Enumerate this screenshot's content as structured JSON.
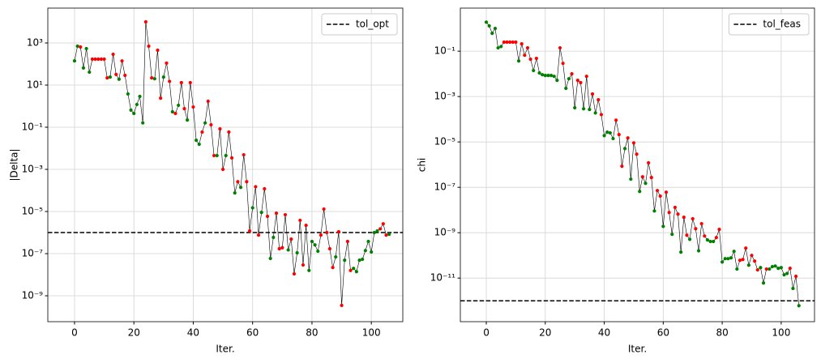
{
  "chart_data": [
    {
      "type": "line",
      "xlabel": "Iter.",
      "ylabel": "|Delta|",
      "log_scale": "y",
      "grid": true,
      "legend": "upper right",
      "xlim": [
        -9,
        110.6
      ],
      "xticks": [
        0,
        20,
        40,
        60,
        80,
        100
      ],
      "ylim": [
        5.9e-11,
        45000
      ],
      "yticks": [
        {
          "value": 1e-09,
          "label": "10⁻⁹"
        },
        {
          "value": 1e-07,
          "label": "10⁻⁷"
        },
        {
          "value": 1e-05,
          "label": "10⁻⁵"
        },
        {
          "value": 0.001,
          "label": "10⁻³"
        },
        {
          "value": 0.1,
          "label": "10⁻¹"
        },
        {
          "value": 10,
          "label": "10¹"
        },
        {
          "value": 1000,
          "label": "10³"
        }
      ],
      "x": [
        0,
        1,
        2,
        3,
        4,
        5,
        6,
        7,
        8,
        9,
        10,
        11,
        12,
        13,
        14,
        15,
        16,
        17,
        18,
        19,
        20,
        21,
        22,
        23,
        24,
        25,
        26,
        27,
        28,
        29,
        30,
        31,
        32,
        33,
        34,
        35,
        36,
        37,
        38,
        39,
        40,
        41,
        42,
        43,
        44,
        45,
        46,
        47,
        48,
        49,
        50,
        51,
        52,
        53,
        54,
        55,
        56,
        57,
        58,
        59,
        60,
        61,
        62,
        63,
        64,
        65,
        66,
        67,
        68,
        69,
        70,
        71,
        72,
        73,
        74,
        75,
        76,
        77,
        78,
        79,
        80,
        81,
        82,
        83,
        84,
        85,
        86,
        87,
        88,
        89,
        90,
        91,
        92,
        93,
        94,
        95,
        96,
        97,
        98,
        99,
        100,
        101,
        102,
        103,
        104,
        105,
        106
      ],
      "series": [
        {
          "color": "#000000",
          "values": [
            141,
            700,
            640,
            65,
            540,
            41,
            170,
            170,
            170,
            170,
            170,
            22,
            24,
            290,
            32,
            19,
            140,
            29,
            3.8,
            0.65,
            0.45,
            1.2,
            2.9,
            0.16,
            10000,
            700,
            22,
            20,
            450,
            2.4,
            24,
            110,
            15,
            0.54,
            0.45,
            1.1,
            13,
            0.76,
            0.22,
            13,
            0.91,
            0.024,
            0.0155,
            0.059,
            0.16,
            1.7,
            0.13,
            0.0045,
            0.0045,
            0.083,
            0.001,
            0.0045,
            0.059,
            0.0035,
            7.6e-05,
            0.00026,
            0.00014,
            0.0049,
            0.00026,
            1.2e-06,
            1.5e-05,
            0.00015,
            7.6e-07,
            9.1e-06,
            0.00012,
            5.9e-06,
            5.9e-08,
            5.9e-07,
            8.3e-06,
            1.7e-07,
            1.9e-07,
            7e-06,
            1.5e-07,
            4.9e-07,
            1.1e-08,
            1.1e-07,
            3.8e-06,
            2.9e-08,
            2.2e-06,
            1.6e-08,
            3.8e-07,
            2.6e-07,
            1.3e-07,
            7.6e-07,
            1.3e-05,
            1e-06,
            1.7e-07,
            2.2e-08,
            7e-08,
            1.1e-06,
            3.5e-10,
            4.9e-08,
            3.8e-07,
            1.6e-08,
            2e-08,
            1.4e-08,
            4.9e-08,
            5.4e-08,
            1.4e-07,
            3.8e-07,
            1.2e-07,
            1e-06,
            1.2e-06,
            1.5e-06,
            2.6e-06,
            7.6e-07,
            8.3e-07
          ],
          "marker_colors": [
            "green",
            "green",
            "red",
            "green",
            "green",
            "green",
            "red",
            "red",
            "red",
            "red",
            "red",
            "red",
            "green",
            "red",
            "red",
            "green",
            "red",
            "red",
            "green",
            "green",
            "green",
            "green",
            "green",
            "green",
            "red",
            "red",
            "red",
            "green",
            "red",
            "red",
            "green",
            "red",
            "red",
            "green",
            "red",
            "green",
            "red",
            "red",
            "green",
            "red",
            "red",
            "green",
            "green",
            "red",
            "green",
            "red",
            "red",
            "red",
            "green",
            "red",
            "red",
            "green",
            "red",
            "red",
            "green",
            "red",
            "green",
            "red",
            "red",
            "red",
            "green",
            "red",
            "red",
            "green",
            "red",
            "red",
            "green",
            "green",
            "red",
            "red",
            "red",
            "red",
            "green",
            "red",
            "red",
            "green",
            "red",
            "red",
            "red",
            "green",
            "green",
            "green",
            "green",
            "red",
            "red",
            "red",
            "red",
            "red",
            "green",
            "red",
            "red",
            "green",
            "red",
            "red",
            "green",
            "green",
            "green",
            "green",
            "green",
            "green",
            "green",
            "green",
            "green",
            "red",
            "red",
            "red",
            "green"
          ]
        }
      ],
      "hlines": [
        {
          "name": "tol_opt",
          "value": 1e-06,
          "color": "#000000",
          "style": "dashed"
        }
      ]
    },
    {
      "type": "line",
      "xlabel": "Iter.",
      "ylabel": "chi",
      "log_scale": "y",
      "grid": true,
      "legend": "upper right",
      "xlim": [
        -8.8,
        111.3
      ],
      "xticks": [
        0,
        20,
        40,
        60,
        80,
        100
      ],
      "ylim": [
        1.2e-13,
        7.9
      ],
      "yticks": [
        {
          "value": 1e-11,
          "label": "10⁻¹¹"
        },
        {
          "value": 1e-09,
          "label": "10⁻⁹"
        },
        {
          "value": 1e-07,
          "label": "10⁻⁷"
        },
        {
          "value": 1e-05,
          "label": "10⁻⁵"
        },
        {
          "value": 0.001,
          "label": "10⁻³"
        },
        {
          "value": 0.1,
          "label": "10⁻¹"
        }
      ],
      "x": [
        0,
        1,
        2,
        3,
        4,
        5,
        6,
        7,
        8,
        9,
        10,
        11,
        12,
        13,
        14,
        15,
        16,
        17,
        18,
        19,
        20,
        21,
        22,
        23,
        24,
        25,
        26,
        27,
        28,
        29,
        30,
        31,
        32,
        33,
        34,
        35,
        36,
        37,
        38,
        39,
        40,
        41,
        42,
        43,
        44,
        45,
        46,
        47,
        48,
        49,
        50,
        51,
        52,
        53,
        54,
        55,
        56,
        57,
        58,
        59,
        60,
        61,
        62,
        63,
        64,
        65,
        66,
        67,
        68,
        69,
        70,
        71,
        72,
        73,
        74,
        75,
        76,
        77,
        78,
        79,
        80,
        81,
        82,
        83,
        84,
        85,
        86,
        87,
        88,
        89,
        90,
        91,
        92,
        93,
        94,
        95,
        96,
        97,
        98,
        99,
        100,
        101,
        102,
        103,
        104,
        105,
        106
      ],
      "series": [
        {
          "color": "#000000",
          "values": [
            1.9,
            1.3,
            0.61,
            1.0,
            0.14,
            0.16,
            0.25,
            0.25,
            0.25,
            0.25,
            0.25,
            0.037,
            0.21,
            0.066,
            0.14,
            0.044,
            0.014,
            0.048,
            0.011,
            0.0092,
            0.0085,
            0.0085,
            0.0085,
            0.0078,
            0.0052,
            0.14,
            0.029,
            0.0023,
            0.0061,
            0.01,
            0.00032,
            0.0052,
            0.0041,
            0.00029,
            0.0078,
            0.00027,
            0.0013,
            0.00019,
            0.00072,
            0.00016,
            1.9e-05,
            2.7e-05,
            2.5e-05,
            1.4e-05,
            9.1e-05,
            2.1e-05,
            8.5e-07,
            5.1e-06,
            1.5e-05,
            2.3e-07,
            9.1e-06,
            2.9e-06,
            6.6e-08,
            2.9e-07,
            1.5e-07,
            1.2e-06,
            2.7e-07,
            9.1e-09,
            7.2e-08,
            4.1e-08,
            1.9e-09,
            6.1e-08,
            7.8e-09,
            8.5e-10,
            1.3e-08,
            6.6e-09,
            1.4e-10,
            4.8e-09,
            7.8e-10,
            5.1e-10,
            4.1e-09,
            1.5e-09,
            1.6e-10,
            2.5e-09,
            7.2e-10,
            4.8e-10,
            4.1e-10,
            4.1e-10,
            6.1e-10,
            1.4e-09,
            5.1e-11,
            7.2e-11,
            7.2e-11,
            7.8e-11,
            1.5e-10,
            2.5e-11,
            6.1e-11,
            6.6e-11,
            2.1e-10,
            3.7e-11,
            1e-10,
            5.6e-11,
            2.3e-11,
            2.9e-11,
            6.1e-12,
            2.5e-11,
            2.5e-11,
            3.2e-11,
            3.4e-11,
            2.7e-11,
            2.9e-11,
            1.4e-11,
            1.6e-11,
            2.7e-11,
            3.5e-12,
            1.2e-11,
            6.1e-13
          ],
          "marker_colors": [
            "green",
            "green",
            "green",
            "green",
            "green",
            "green",
            "red",
            "red",
            "red",
            "red",
            "red",
            "green",
            "red",
            "red",
            "red",
            "red",
            "green",
            "red",
            "green",
            "green",
            "green",
            "green",
            "green",
            "green",
            "green",
            "red",
            "red",
            "green",
            "green",
            "red",
            "green",
            "red",
            "red",
            "green",
            "red",
            "green",
            "red",
            "green",
            "red",
            "red",
            "green",
            "green",
            "green",
            "green",
            "red",
            "red",
            "red",
            "green",
            "red",
            "green",
            "red",
            "red",
            "green",
            "red",
            "green",
            "red",
            "red",
            "green",
            "red",
            "red",
            "green",
            "red",
            "red",
            "green",
            "red",
            "red",
            "green",
            "red",
            "red",
            "green",
            "red",
            "red",
            "green",
            "red",
            "red",
            "green",
            "green",
            "green",
            "red",
            "red",
            "green",
            "green",
            "green",
            "green",
            "green",
            "green",
            "red",
            "red",
            "red",
            "green",
            "red",
            "red",
            "red",
            "green",
            "green",
            "red",
            "green",
            "green",
            "green",
            "green",
            "green",
            "green",
            "green",
            "red",
            "green",
            "red",
            "green"
          ]
        }
      ],
      "hlines": [
        {
          "name": "tol_feas",
          "value": 1e-12,
          "color": "#000000",
          "style": "dashed"
        }
      ]
    }
  ]
}
